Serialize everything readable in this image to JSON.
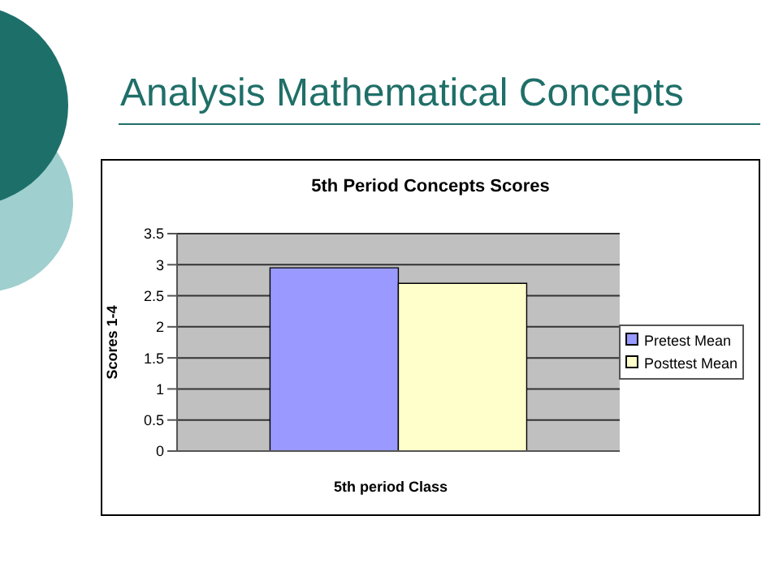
{
  "chart_data": {
    "type": "bar",
    "title": "Analysis Mathematical Concepts",
    "subtitle": "5th Period Concepts Scores",
    "xlabel": "5th period Class",
    "ylabel": "Scores 1-4",
    "categories": [
      null
    ],
    "series": [
      {
        "name": "Pretest Mean",
        "color": "#9999ff",
        "values": [
          2.95
        ]
      },
      {
        "name": "Posttest Mean",
        "color": "#ffffcc",
        "values": [
          2.7
        ]
      }
    ],
    "ylim": [
      0,
      3.5
    ],
    "yticks": [
      0,
      0.5,
      1,
      1.5,
      2,
      2.5,
      3,
      3.5
    ],
    "grid": "y",
    "legend": "right"
  }
}
